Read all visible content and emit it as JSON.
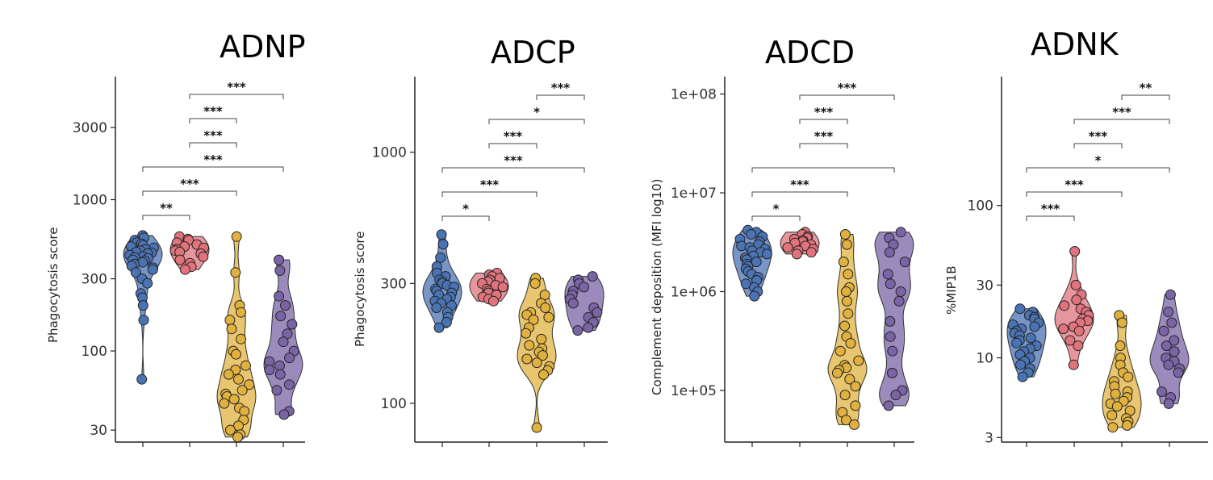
{
  "chart_data": [
    {
      "type": "violin",
      "title": "ADNP",
      "ylabel": "Phagocytosis score",
      "yscale": "log",
      "ylim": [
        25,
        6500
      ],
      "yticks": [
        {
          "value": 30,
          "label": "30"
        },
        {
          "value": 100,
          "label": "100"
        },
        {
          "value": 300,
          "label": "300"
        },
        {
          "value": 1000,
          "label": "1000"
        },
        {
          "value": 3000,
          "label": "3000"
        }
      ],
      "groups": [
        {
          "color": "#4a73b4",
          "values": [
            580,
            560,
            540,
            520,
            510,
            500,
            490,
            480,
            470,
            460,
            450,
            445,
            440,
            430,
            420,
            415,
            410,
            400,
            395,
            385,
            375,
            365,
            355,
            345,
            330,
            300,
            280,
            240,
            225,
            200,
            160,
            65
          ]
        },
        {
          "color": "#e0737c",
          "values": [
            570,
            550,
            540,
            520,
            505,
            490,
            480,
            470,
            460,
            450,
            440,
            420,
            400,
            380,
            360,
            345
          ]
        },
        {
          "color": "#e0b13f",
          "values": [
            570,
            330,
            200,
            180,
            160,
            140,
            120,
            100,
            95,
            80,
            75,
            70,
            65,
            60,
            55,
            52,
            50,
            48,
            45,
            42,
            40,
            35,
            32,
            30,
            28,
            27
          ]
        },
        {
          "color": "#7a64a6",
          "values": [
            400,
            340,
            230,
            200,
            170,
            150,
            130,
            115,
            100,
            90,
            85,
            80,
            75,
            70,
            60,
            55,
            40,
            38
          ]
        }
      ],
      "brackets": [
        {
          "from": 0,
          "to": 1,
          "label": "**"
        },
        {
          "from": 0,
          "to": 2,
          "label": "***"
        },
        {
          "from": 0,
          "to": 3,
          "label": "***"
        },
        {
          "from": 1,
          "to": 2,
          "label": "***"
        },
        {
          "from": 1,
          "to": 2,
          "label": "***"
        },
        {
          "from": 1,
          "to": 3,
          "label": "***"
        },
        {
          "from": 2,
          "to": 3,
          "label": "*"
        }
      ]
    },
    {
      "type": "violin",
      "title": "ADCP",
      "ylabel": "Phagocytosis score",
      "yscale": "log",
      "ylim": [
        70,
        2000
      ],
      "yticks": [
        {
          "value": 100,
          "label": "100"
        },
        {
          "value": 300,
          "label": "300"
        },
        {
          "value": 1000,
          "label": "1000"
        }
      ],
      "groups": [
        {
          "color": "#4a73b4",
          "values": [
            470,
            430,
            380,
            350,
            330,
            320,
            310,
            305,
            300,
            295,
            290,
            285,
            280,
            275,
            270,
            265,
            260,
            255,
            250,
            245,
            240,
            230,
            220,
            210,
            200
          ]
        },
        {
          "color": "#e0737c",
          "values": [
            330,
            325,
            320,
            315,
            310,
            305,
            300,
            295,
            290,
            285,
            280,
            275,
            270,
            265,
            260,
            255
          ]
        },
        {
          "color": "#e0b13f",
          "values": [
            315,
            300,
            270,
            250,
            240,
            230,
            225,
            220,
            215,
            200,
            190,
            180,
            170,
            165,
            160,
            155,
            150,
            145,
            140,
            135,
            130,
            80
          ]
        },
        {
          "color": "#7a64a6",
          "values": [
            320,
            310,
            300,
            290,
            280,
            270,
            260,
            250,
            240,
            230,
            220,
            210,
            200,
            195
          ]
        }
      ],
      "brackets": [
        {
          "from": 0,
          "to": 1,
          "label": "*"
        },
        {
          "from": 0,
          "to": 2,
          "label": "***"
        },
        {
          "from": 0,
          "to": 3,
          "label": "***"
        },
        {
          "from": 1,
          "to": 2,
          "label": "***"
        },
        {
          "from": 1,
          "to": 3,
          "label": "*"
        },
        {
          "from": 2,
          "to": 3,
          "label": "***"
        }
      ]
    },
    {
      "type": "violin",
      "title": "ADCD",
      "ylabel": "Complement deposition (MFI log10)",
      "yscale": "log",
      "ylim": [
        30000,
        150000000
      ],
      "yticks": [
        {
          "value": 100000,
          "label": "1e+05"
        },
        {
          "value": 1000000,
          "label": "1e+06"
        },
        {
          "value": 10000000,
          "label": "1e+07"
        },
        {
          "value": 100000000,
          "label": "1e+08"
        }
      ],
      "groups": [
        {
          "color": "#4a73b4",
          "values": [
            4200000,
            4000000,
            3800000,
            3600000,
            3400000,
            3200000,
            3000000,
            2900000,
            2800000,
            2700000,
            2600000,
            2500000,
            2400000,
            2300000,
            2200000,
            2100000,
            2000000,
            1900000,
            1800000,
            1700000,
            1600000,
            1500000,
            1400000,
            1300000,
            1200000,
            1100000,
            1000000,
            900000
          ]
        },
        {
          "color": "#e0737c",
          "values": [
            4000000,
            3800000,
            3600000,
            3500000,
            3400000,
            3300000,
            3200000,
            3100000,
            3000000,
            2900000,
            2800000,
            2700000,
            2600000,
            2500000,
            2400000
          ]
        },
        {
          "color": "#e0b13f",
          "values": [
            3800000,
            3000000,
            2000000,
            1500000,
            1100000,
            1000000,
            800000,
            600000,
            450000,
            350000,
            300000,
            250000,
            200000,
            180000,
            170000,
            160000,
            150000,
            130000,
            110000,
            90000,
            70000,
            60000,
            50000,
            45000
          ]
        },
        {
          "color": "#7a64a6",
          "values": [
            4000000,
            3500000,
            3000000,
            2500000,
            2000000,
            1500000,
            1200000,
            1000000,
            800000,
            500000,
            350000,
            250000,
            150000,
            100000,
            90000,
            70000
          ]
        }
      ],
      "brackets": [
        {
          "from": 0,
          "to": 1,
          "label": "*"
        },
        {
          "from": 0,
          "to": 2,
          "label": "***"
        },
        {
          "from": 0,
          "to": 3,
          "label": ""
        },
        {
          "from": 1,
          "to": 2,
          "label": "***"
        },
        {
          "from": 1,
          "to": 2,
          "label": "***"
        },
        {
          "from": 1,
          "to": 3,
          "label": "***"
        },
        {
          "from": 2,
          "to": 3,
          "label": ""
        }
      ]
    },
    {
      "type": "violin",
      "title": "ADNK",
      "ylabel": "%MIP1B",
      "yscale": "log",
      "ylim": [
        2.8,
        700
      ],
      "yticks": [
        {
          "value": 3,
          "label": "3"
        },
        {
          "value": 10,
          "label": "10"
        },
        {
          "value": 30,
          "label": "30"
        },
        {
          "value": 100,
          "label": "100"
        }
      ],
      "groups": [
        {
          "color": "#4a73b4",
          "values": [
            21,
            20,
            19,
            18.5,
            18,
            17,
            16.5,
            16,
            15.5,
            15,
            14.5,
            14,
            13.5,
            13,
            12.5,
            12,
            11.5,
            11,
            10.5,
            10,
            9.5,
            9,
            8.5,
            8,
            7.5
          ]
        },
        {
          "color": "#e0737c",
          "values": [
            50,
            30,
            26,
            24,
            22,
            21,
            20,
            19,
            18,
            17.5,
            17,
            16,
            15.5,
            15,
            13,
            12,
            9
          ]
        },
        {
          "color": "#e0b13f",
          "values": [
            19,
            17,
            12,
            10,
            9,
            8,
            7.5,
            7,
            6.5,
            6,
            5.8,
            5.5,
            5.2,
            5,
            4.8,
            4.5,
            4.2,
            4,
            3.8,
            3.6,
            3.5
          ]
        },
        {
          "color": "#7a64a6",
          "values": [
            26,
            20,
            17,
            15,
            13,
            12,
            11,
            10,
            9.5,
            9,
            8.5,
            8,
            6,
            5.5,
            5
          ]
        }
      ],
      "brackets": [
        {
          "from": 0,
          "to": 1,
          "label": "***"
        },
        {
          "from": 0,
          "to": 2,
          "label": "***"
        },
        {
          "from": 0,
          "to": 3,
          "label": "*"
        },
        {
          "from": 1,
          "to": 2,
          "label": "***"
        },
        {
          "from": 1,
          "to": 3,
          "label": "***"
        },
        {
          "from": 2,
          "to": 3,
          "label": "**"
        }
      ]
    }
  ]
}
